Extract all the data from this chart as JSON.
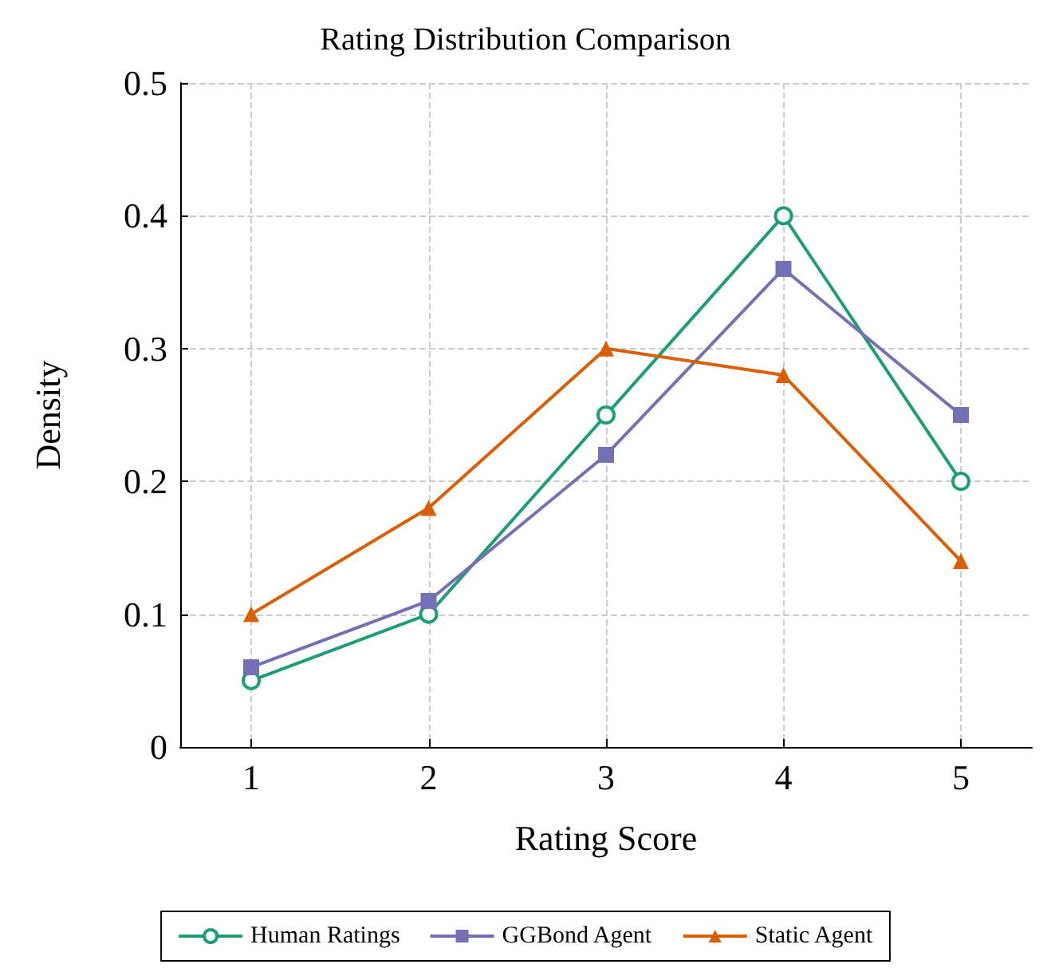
{
  "chart_data": {
    "type": "line",
    "title": "Rating Distribution Comparison",
    "xlabel": "Rating Score",
    "ylabel": "Density",
    "x": [
      1,
      2,
      3,
      4,
      5
    ],
    "series": [
      {
        "name": "Human Ratings",
        "color": "#1b9e77",
        "marker": "circle",
        "values": [
          0.05,
          0.1,
          0.25,
          0.4,
          0.2
        ]
      },
      {
        "name": "GGBond Agent",
        "color": "#7570b3",
        "marker": "square",
        "values": [
          0.06,
          0.11,
          0.22,
          0.36,
          0.25
        ]
      },
      {
        "name": "Static Agent",
        "color": "#d95f02",
        "marker": "triangle",
        "values": [
          0.1,
          0.18,
          0.3,
          0.28,
          0.14
        ]
      }
    ],
    "xlim": [
      0.6,
      5.4
    ],
    "xticks": [
      1,
      2,
      3,
      4,
      5
    ],
    "ylim": [
      0,
      0.5
    ],
    "yticks": [
      0,
      0.1,
      0.2,
      0.3,
      0.4,
      0.5
    ],
    "grid": true,
    "legend": "bottom",
    "line_style": "solid"
  }
}
